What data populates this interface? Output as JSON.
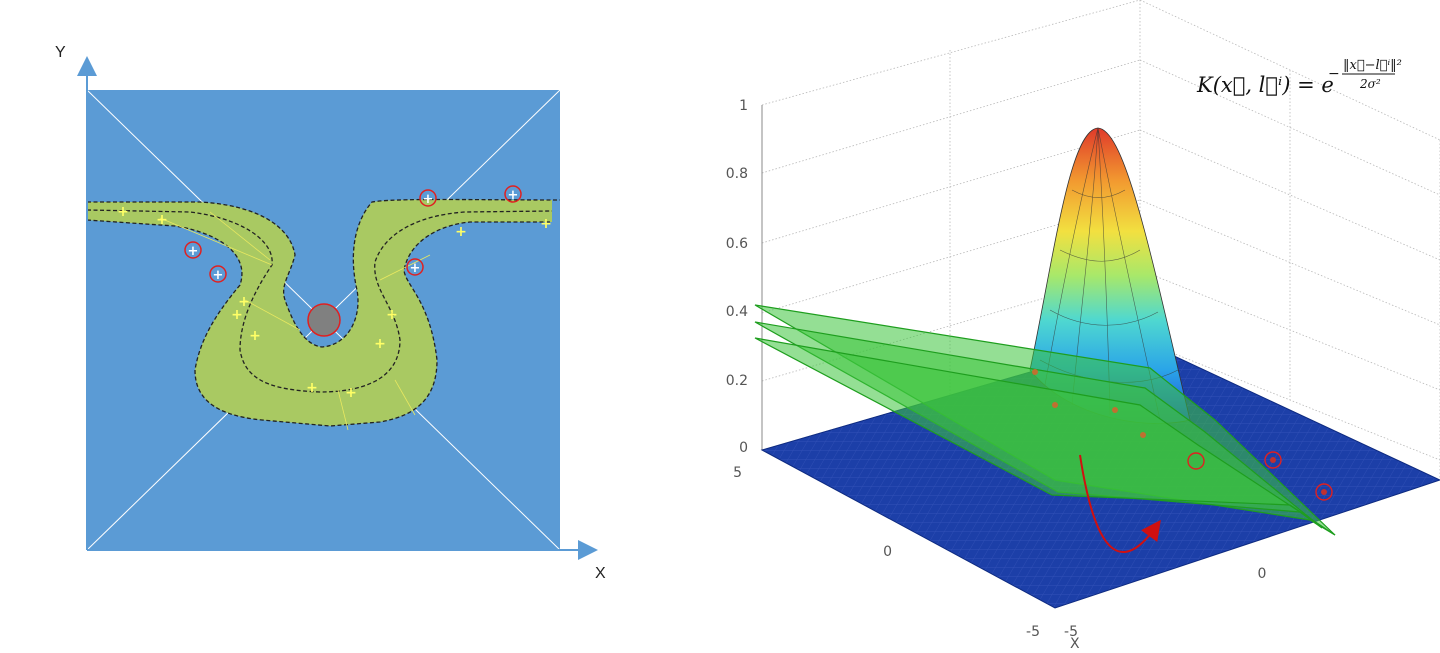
{
  "left_diagram": {
    "y_axis_label": "Y",
    "x_axis_label": "X",
    "colors": {
      "background": "#5b9bd5",
      "band": "#a9c962",
      "landmark": "#808080",
      "landmark_ring": "#e02020",
      "plus": "#ffff66",
      "axis": "#5b9bd5"
    }
  },
  "right_diagram": {
    "formula": {
      "lhs": "K(x⃗, l⃗ⁱ) = e",
      "exp_numerator": "‖x⃗−l⃗ⁱ‖²",
      "exp_denominator": "2σ²",
      "exp_minus": "−"
    },
    "z_ticks": [
      "1",
      "0.8",
      "0.6",
      "0.4",
      "0.2",
      "0"
    ],
    "y_ticks": [
      "5",
      "0",
      "-5"
    ],
    "x_ticks": [
      "0",
      "-5"
    ],
    "x_axis_label": "X",
    "colors": {
      "floor": "#1c3fa8",
      "planes": "#3cc43c",
      "marker": "#e02020"
    }
  }
}
